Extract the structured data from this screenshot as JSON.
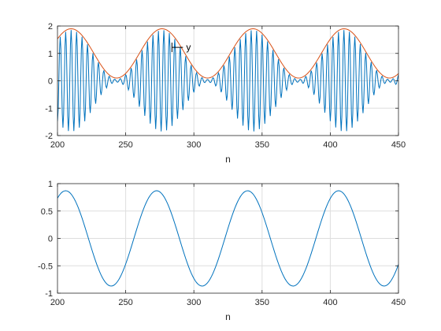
{
  "chart_data": [
    {
      "type": "line",
      "xlabel": "n",
      "ylabel": "",
      "title": "",
      "xlim": [
        200,
        450
      ],
      "ylim": [
        -2,
        2
      ],
      "xticks": [
        200,
        250,
        300,
        350,
        400,
        450
      ],
      "yticks": [
        -2,
        -1,
        0,
        1,
        2
      ],
      "grid": true,
      "annotation": {
        "text": "y",
        "at": [
          292,
          1.22
        ]
      },
      "series": [
        {
          "color": "#0072BD",
          "function": "(0.95 + 0.9*cos(2*pi*(n-210)/66.7)) * cos(2*pi*(n-210)/4)",
          "n_start": 200,
          "n_end": 450,
          "n_step": 0.5
        },
        {
          "color": "#D95319",
          "function": "1 + 0.9*cos(2*pi*(n-210)/66.7)",
          "n_start": 200,
          "n_end": 450,
          "n_step": 1
        }
      ]
    },
    {
      "type": "line",
      "xlabel": "n",
      "ylabel": "",
      "title": "",
      "xlim": [
        200,
        450
      ],
      "ylim": [
        -1,
        1
      ],
      "xticks": [
        200,
        250,
        300,
        350,
        400,
        450
      ],
      "yticks": [
        -1,
        -0.5,
        0,
        0.5,
        1
      ],
      "grid": true,
      "series": [
        {
          "color": "#0072BD",
          "function": "0.87*cos(2*pi*(n-206)/66.7)",
          "n_start": 200,
          "n_end": 450,
          "n_step": 1
        }
      ]
    }
  ]
}
